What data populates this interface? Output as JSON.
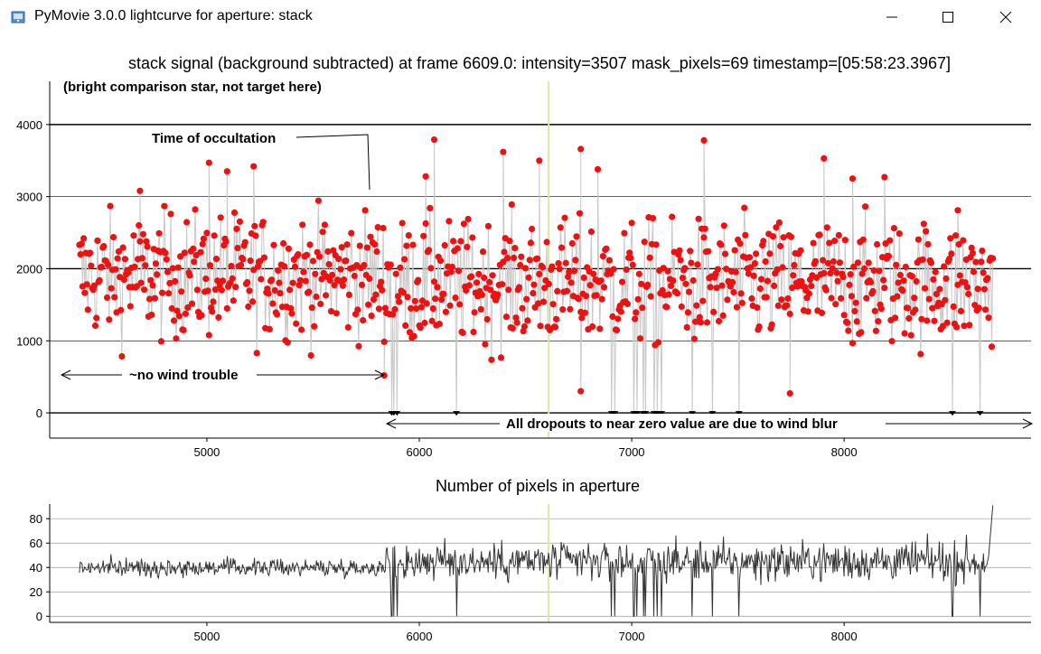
{
  "window": {
    "title": "PyMovie 3.0.0 lightcurve for aperture: stack",
    "icons": {
      "app": "pymovie-icon",
      "minimize": "minimize-icon",
      "maximize": "maximize-icon",
      "close": "close-icon"
    }
  },
  "colors": {
    "points": "#ee1111",
    "drop_points": "#000000",
    "stems": "#c8c8c8",
    "cursor": "#dfe6a6",
    "line2": "#333333",
    "grid": "#000000"
  },
  "chart_data": [
    {
      "type": "scatter",
      "title": "stack signal (background subtracted) at frame 6609.0: intensity=3507 mask_pixels=69 timestamp=[05:58:23.3967]",
      "xlim": [
        4260,
        8880
      ],
      "ylim": [
        -350,
        4600
      ],
      "x_ticks": [
        5000,
        6000,
        7000,
        8000
      ],
      "y_ticks": [
        0,
        1000,
        2000,
        3000,
        4000
      ],
      "grid": "horizontal",
      "cursor_frame": 6609,
      "x_start": 4400,
      "x_end": 8700,
      "baseline": 1900,
      "dropout_frames": [
        5868,
        5880,
        5895,
        6175,
        6905,
        6920,
        7010,
        7025,
        7055,
        7065,
        7105,
        7120,
        7140,
        7285,
        7380,
        7505,
        8510,
        8640
      ],
      "spikes": [
        {
          "x": 4685,
          "y": 3080
        },
        {
          "x": 5010,
          "y": 3470
        },
        {
          "x": 5095,
          "y": 3350
        },
        {
          "x": 5220,
          "y": 3420
        },
        {
          "x": 6070,
          "y": 3790
        },
        {
          "x": 6395,
          "y": 3620
        },
        {
          "x": 6565,
          "y": 3500
        },
        {
          "x": 6760,
          "y": 3660
        },
        {
          "x": 6840,
          "y": 3380
        },
        {
          "x": 7340,
          "y": 3780
        },
        {
          "x": 7905,
          "y": 3530
        },
        {
          "x": 8190,
          "y": 3270
        },
        {
          "x": 8040,
          "y": 3250
        },
        {
          "x": 8535,
          "y": 2810
        },
        {
          "x": 6030,
          "y": 3280
        },
        {
          "x": 6760,
          "y": 300
        },
        {
          "x": 7745,
          "y": 270
        },
        {
          "x": 5835,
          "y": 520
        }
      ],
      "annotations": {
        "subtitle": "(bright comparison star, not target here)",
        "occultation": "Time of occultation",
        "no_wind": "~no wind trouble",
        "dropouts": "All dropouts to near zero value are due to wind blur"
      }
    },
    {
      "type": "line",
      "title": "Number of pixels in aperture",
      "xlim": [
        4260,
        8880
      ],
      "ylim": [
        -5,
        92
      ],
      "x_ticks": [
        5000,
        6000,
        7000,
        8000
      ],
      "y_ticks": [
        0,
        20,
        40,
        60,
        80
      ],
      "grid": "horizontal",
      "cursor_frame": 6609,
      "baseline_values": [
        40,
        45,
        45
      ],
      "end_value": 91
    }
  ]
}
